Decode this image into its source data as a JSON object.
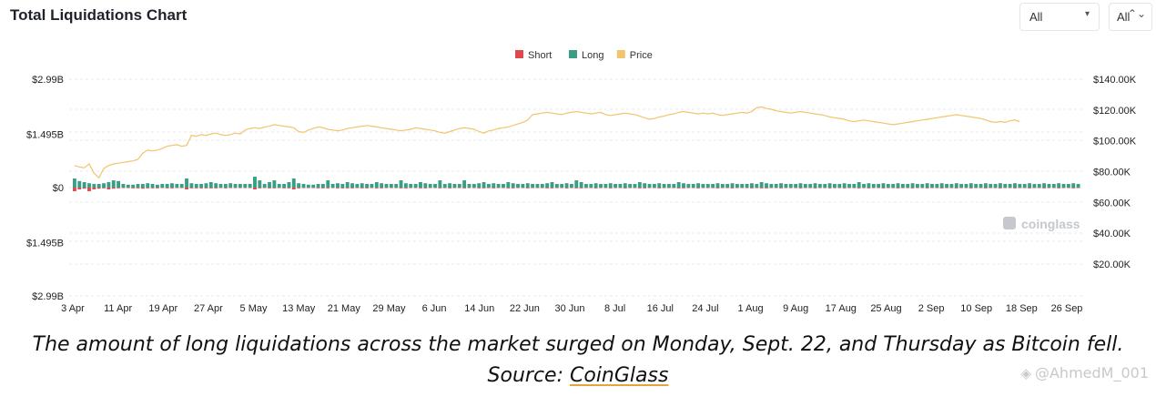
{
  "header": {
    "title": "Total Liquidations Chart",
    "select_exchange": "All",
    "select_coin": "All",
    "chevron_glyph": "▾",
    "updown_glyph": "⌃⌄"
  },
  "caption": {
    "text": "The amount of long liquidations across the market surged on Monday, Sept. 22, and Thursday as Bitcoin fell. Source: ",
    "link": "CoinGlass"
  },
  "watermark": "@AhmedM_001",
  "brand_watermark": "coinglass",
  "chart_data": {
    "type": "bar",
    "legend": [
      {
        "name": "Short",
        "color": "#e0484f"
      },
      {
        "name": "Long",
        "color": "#3a9e84"
      },
      {
        "name": "Price",
        "color": "#f2c46e"
      }
    ],
    "legend_position": "top-center",
    "left_axis": {
      "ticks": [
        2.99,
        1.495,
        0,
        -1.495,
        -2.99
      ],
      "tick_labels": [
        "$2.99B",
        "$1.495B",
        "$0",
        "$1.495B",
        "$2.99B"
      ],
      "range": [
        -2.99,
        2.99
      ]
    },
    "right_axis": {
      "ticks": [
        140000,
        120000,
        100000,
        80000,
        60000,
        40000,
        20000
      ],
      "tick_labels": [
        "$140.00K",
        "$120.00K",
        "$100.00K",
        "$80.00K",
        "$60.00K",
        "$40.00K",
        "$20.00K"
      ],
      "range": [
        0,
        140000
      ]
    },
    "x_tick_labels": [
      "3 Apr",
      "11 Apr",
      "19 Apr",
      "27 Apr",
      "5 May",
      "13 May",
      "21 May",
      "29 May",
      "6 Jun",
      "14 Jun",
      "22 Jun",
      "30 Jun",
      "8 Jul",
      "16 Jul",
      "24 Jul",
      "1 Aug",
      "9 Aug",
      "17 Aug",
      "25 Aug",
      "2 Sep",
      "10 Sep",
      "18 Sep",
      "26 Sep"
    ],
    "grid": "horizontal-dashed",
    "long": [
      0.25,
      0.18,
      0.15,
      0.12,
      0.1,
      0.1,
      0.12,
      0.15,
      0.2,
      0.18,
      0.1,
      0.08,
      0.08,
      0.1,
      0.1,
      0.12,
      0.1,
      0.08,
      0.1,
      0.1,
      0.12,
      0.1,
      0.1,
      0.25,
      0.12,
      0.1,
      0.1,
      0.12,
      0.15,
      0.12,
      0.1,
      0.1,
      0.12,
      0.1,
      0.1,
      0.1,
      0.1,
      0.3,
      0.2,
      0.1,
      0.15,
      0.2,
      0.1,
      0.1,
      0.15,
      0.25,
      0.12,
      0.1,
      0.08,
      0.08,
      0.1,
      0.1,
      0.2,
      0.1,
      0.12,
      0.1,
      0.15,
      0.12,
      0.1,
      0.12,
      0.1,
      0.1,
      0.15,
      0.12,
      0.1,
      0.1,
      0.1,
      0.2,
      0.12,
      0.1,
      0.1,
      0.15,
      0.12,
      0.1,
      0.1,
      0.2,
      0.1,
      0.12,
      0.1,
      0.1,
      0.2,
      0.1,
      0.1,
      0.12,
      0.15,
      0.1,
      0.12,
      0.1,
      0.1,
      0.15,
      0.12,
      0.1,
      0.1,
      0.12,
      0.1,
      0.1,
      0.1,
      0.12,
      0.15,
      0.1,
      0.1,
      0.12,
      0.1,
      0.2,
      0.15,
      0.1,
      0.1,
      0.12,
      0.1,
      0.1,
      0.12,
      0.1,
      0.1,
      0.12,
      0.1,
      0.1,
      0.15,
      0.12,
      0.1,
      0.1,
      0.12,
      0.1,
      0.1,
      0.1,
      0.15,
      0.12,
      0.1,
      0.1,
      0.12,
      0.1,
      0.1,
      0.1,
      0.12,
      0.1,
      0.1,
      0.12,
      0.1,
      0.1,
      0.1,
      0.12,
      0.1,
      0.15,
      0.12,
      0.1,
      0.1,
      0.12,
      0.1,
      0.1,
      0.1,
      0.12,
      0.1,
      0.1,
      0.12,
      0.1,
      0.1,
      0.12,
      0.1,
      0.1,
      0.12,
      0.1,
      0.1,
      0.15,
      0.1,
      0.12,
      0.1,
      0.1,
      0.12,
      0.1,
      0.1,
      0.12,
      0.1,
      0.1,
      0.12,
      0.1,
      0.1,
      0.12,
      0.1,
      0.1,
      0.12,
      0.1,
      0.1,
      0.12,
      0.1,
      0.1,
      0.12,
      0.1,
      0.1,
      0.12,
      0.1,
      0.1,
      0.12,
      0.1,
      0.1,
      0.12,
      0.1,
      0.1,
      0.12,
      0.1,
      0.1,
      0.12,
      0.1,
      0.1,
      0.12,
      0.1,
      0.1,
      0.12,
      0.1
    ],
    "short": [
      -0.1,
      -0.05,
      -0.03,
      -0.1,
      -0.05,
      -0.03,
      -0.02,
      -0.05,
      -0.03,
      -0.02,
      -0.01,
      -0.01,
      -0.02,
      -0.02,
      -0.03,
      -0.02,
      -0.02,
      -0.02,
      -0.01,
      -0.02,
      -0.02,
      -0.01,
      -0.01,
      -0.05,
      -0.02,
      -0.02,
      -0.02,
      -0.02,
      -0.02,
      -0.02,
      -0.01,
      -0.02,
      -0.01,
      -0.01,
      -0.01,
      -0.01,
      -0.01,
      -0.05,
      -0.02,
      -0.01,
      -0.02,
      -0.02,
      -0.01,
      -0.02,
      -0.02,
      -0.05,
      -0.02,
      -0.01,
      -0.01,
      -0.01,
      -0.02,
      -0.02,
      -0.02,
      -0.01,
      -0.02,
      -0.02,
      -0.02,
      -0.02,
      -0.01,
      -0.02,
      -0.02,
      -0.01,
      -0.02,
      -0.02,
      -0.01,
      -0.01,
      -0.01,
      -0.02,
      -0.02,
      -0.01,
      -0.01,
      -0.02,
      -0.02,
      -0.01,
      -0.01,
      -0.02,
      -0.01,
      -0.02,
      -0.01,
      -0.01,
      -0.02,
      -0.01,
      -0.01,
      -0.02,
      -0.02,
      -0.01,
      -0.02,
      -0.01,
      -0.01,
      -0.02,
      -0.02,
      -0.01,
      -0.01,
      -0.02,
      -0.01,
      -0.01,
      -0.01,
      -0.02,
      -0.02,
      -0.01,
      -0.01,
      -0.02,
      -0.01,
      -0.02,
      -0.02,
      -0.01,
      -0.01,
      -0.02,
      -0.01,
      -0.01,
      -0.02,
      -0.01,
      -0.01,
      -0.02,
      -0.01,
      -0.01,
      -0.02,
      -0.02,
      -0.01,
      -0.01,
      -0.02,
      -0.01,
      -0.01,
      -0.01,
      -0.02,
      -0.02,
      -0.01,
      -0.01,
      -0.02,
      -0.01,
      -0.01,
      -0.01,
      -0.02,
      -0.01,
      -0.01,
      -0.02,
      -0.01,
      -0.01,
      -0.01,
      -0.02,
      -0.01,
      -0.02,
      -0.02,
      -0.01,
      -0.01,
      -0.02,
      -0.01,
      -0.01,
      -0.01,
      -0.02,
      -0.01,
      -0.01,
      -0.02,
      -0.01,
      -0.01,
      -0.02,
      -0.01,
      -0.01,
      -0.02,
      -0.01,
      -0.01,
      -0.02,
      -0.01,
      -0.02,
      -0.01,
      -0.01,
      -0.02,
      -0.01,
      -0.01,
      -0.02,
      -0.01,
      -0.01,
      -0.02,
      -0.01,
      -0.01,
      -0.02,
      -0.01,
      -0.01,
      -0.02,
      -0.01,
      -0.01,
      -0.02,
      -0.01,
      -0.01,
      -0.02,
      -0.01,
      -0.01,
      -0.02,
      -0.01,
      -0.01,
      -0.02,
      -0.01,
      -0.01,
      -0.02,
      -0.01,
      -0.01,
      -0.02,
      -0.01,
      -0.01,
      -0.02,
      -0.01,
      -0.01,
      -0.02,
      -0.01,
      -0.01,
      -0.02,
      -0.01
    ],
    "price": [
      84000,
      83000,
      82500,
      85000,
      79000,
      76000,
      82000,
      84000,
      85000,
      85500,
      86000,
      86500,
      87000,
      88000,
      92000,
      94000,
      93500,
      94000,
      95000,
      96500,
      97000,
      97500,
      96500,
      97000,
      103500,
      103000,
      104000,
      103500,
      104500,
      105000,
      104000,
      103500,
      104000,
      105000,
      104500,
      107000,
      108000,
      108500,
      108000,
      109000,
      109500,
      110500,
      110000,
      109500,
      109000,
      108500,
      106000,
      105500,
      107000,
      108000,
      109000,
      108500,
      107500,
      107000,
      106500,
      107000,
      108000,
      108500,
      109000,
      109500,
      110000,
      109500,
      109000,
      108500,
      108000,
      107500,
      107000,
      106500,
      107000,
      107500,
      108500,
      108000,
      107500,
      107000,
      106500,
      105500,
      105000,
      106000,
      107000,
      108000,
      108500,
      108000,
      107500,
      106000,
      105000,
      106500,
      107000,
      108000,
      108500,
      109000,
      110000,
      111000,
      112000,
      113500,
      117000,
      117500,
      118000,
      118500,
      118000,
      117500,
      117000,
      118000,
      118500,
      119000,
      118500,
      118000,
      117500,
      118000,
      118500,
      117000,
      116500,
      117000,
      117500,
      118000,
      117500,
      117000,
      116000,
      115000,
      114000,
      114500,
      115500,
      116000,
      117000,
      117500,
      118500,
      119000,
      118500,
      118000,
      117500,
      118000,
      117500,
      118000,
      117000,
      116500,
      117000,
      117500,
      118000,
      118500,
      118000,
      119000,
      121500,
      122000,
      121000,
      120500,
      119500,
      119000,
      118500,
      118000,
      118500,
      119000,
      118500,
      118000,
      117500,
      117000,
      116500,
      115500,
      115000,
      114500,
      114000,
      113000,
      112500,
      113000,
      113500,
      113000,
      112500,
      112000,
      111500,
      111000,
      110500,
      111000,
      111500,
      112000,
      112500,
      113000,
      113500,
      114000,
      114500,
      115000,
      115500,
      116000,
      116500,
      117000,
      116500,
      116000,
      115500,
      115000,
      114500,
      113500,
      112500,
      112000,
      112500,
      112000,
      113000,
      113500,
      112500
    ]
  }
}
